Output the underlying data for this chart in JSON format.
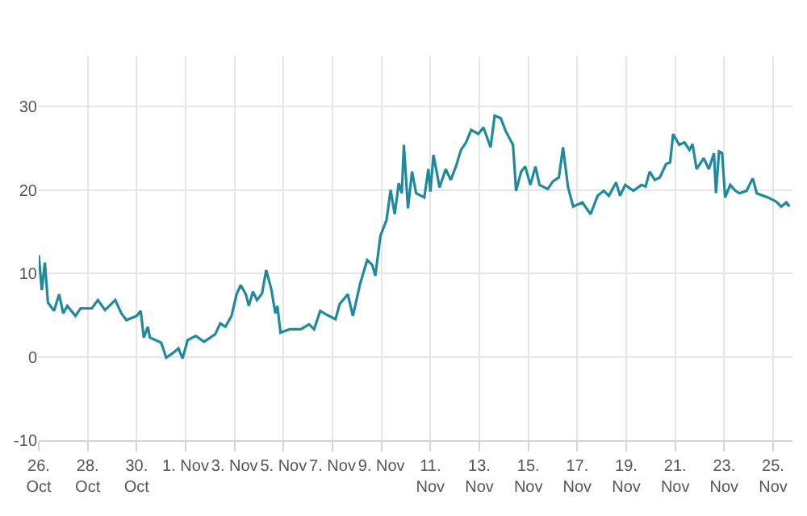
{
  "chart_data": {
    "type": "line",
    "x": [
      "--10-26T00:00",
      "--10-26T03:00",
      "--10-26T06:00",
      "--10-26T09:00",
      "--10-26T15:00",
      "--10-26T20:00",
      "--10-27T00:00",
      "--10-27T04:00",
      "--10-27T12:00",
      "--10-27T17:00",
      "--10-28T04:00",
      "--10-28T10:00",
      "--10-28T17:00",
      "--10-29T03:00",
      "--10-29T09:00",
      "--10-29T14:00",
      "--10-30T00:00",
      "--10-30T04:00",
      "--10-30T07:00",
      "--10-30T11:00",
      "--10-30T13:00",
      "--10-31T00:00",
      "--10-31T05:00",
      "--10-31T11:00",
      "--10-31T17:00",
      "--10-31T21:00",
      "--11-01T02:00",
      "--11-01T10:00",
      "--11-01T18:00",
      "--11-02T05:00",
      "--11-02T10:00",
      "--11-02T15:00",
      "--11-02T21:00",
      "--11-03T02:00",
      "--11-03T06:00",
      "--11-03T11:00",
      "--11-03T14:00",
      "--11-03T18:00",
      "--11-03T22:00",
      "--11-04T03:00",
      "--11-04T07:00",
      "--11-04T12:00",
      "--11-04T16:00",
      "--11-04T18:00",
      "--11-04T21:00",
      "--11-05T06:00",
      "--11-05T17:00",
      "--11-06T01:00",
      "--11-06T06:00",
      "--11-06T12:00",
      "--11-06T19:00",
      "--11-07T03:00",
      "--11-07T07:00",
      "--11-07T15:00",
      "--11-07T20:00",
      "--11-08T03:00",
      "--11-08T10:00",
      "--11-08T15:00",
      "--11-08T18:00",
      "--11-08T23:00",
      "--11-09T05:00",
      "--11-09T09:00",
      "--11-09T13:00",
      "--11-09T17:00",
      "--11-09T20:00",
      "--11-09T22:00",
      "--11-10T02:00",
      "--11-10T06:00",
      "--11-10T10:00",
      "--11-10T18:00",
      "--11-10T22:00",
      "--11-11T00:00",
      "--11-11T03:00",
      "--11-11T09:00",
      "--11-11T15:00",
      "--11-11T20:00",
      "--11-12T01:00",
      "--11-12T06:00",
      "--11-12T11:00",
      "--11-12T16:00",
      "--11-12T23:00",
      "--11-13T04:00",
      "--11-13T11:00",
      "--11-13T15:00",
      "--11-13T21:00",
      "--11-14T02:00",
      "--11-14T09:00",
      "--11-14T12:00",
      "--11-14T17:00",
      "--11-14T21:00",
      "--11-15T02:00",
      "--11-15T07:00",
      "--11-15T11:00",
      "--11-15T19:00",
      "--11-16T00:00",
      "--11-16T06:00",
      "--11-16T10:00",
      "--11-16T15:00",
      "--11-16T20:00",
      "--11-17T05:00",
      "--11-17T13:00",
      "--11-17T20:00",
      "--11-18T02:00",
      "--11-18T07:00",
      "--11-18T14:00",
      "--11-18T18:00",
      "--11-18T23:00",
      "--11-19T07:00",
      "--11-19T15:00",
      "--11-19T19:00",
      "--11-19T23:00",
      "--11-20T04:00",
      "--11-20T09:00",
      "--11-20T15:00",
      "--11-20T19:00",
      "--11-20T22:00",
      "--11-21T04:00",
      "--11-21T09:00",
      "--11-21T14:00",
      "--11-21T17:00",
      "--11-21T21:00",
      "--11-22T04:00",
      "--11-22T09:00",
      "--11-22T14:00",
      "--11-22T16:00",
      "--11-22T19:00",
      "--11-22T22:00",
      "--11-23T01:00",
      "--11-23T06:00",
      "--11-23T11:00",
      "--11-23T15:00",
      "--11-23T22:00",
      "--11-24T04:00",
      "--11-24T08:00",
      "--11-24T19:00",
      "--11-25T03:00",
      "--11-25T08:00",
      "--11-25T13:00",
      "--11-25T16:00"
    ],
    "series": [
      {
        "color": "#1f8a9e",
        "values": [
          12.2,
          8.0,
          11.3,
          6.5,
          5.5,
          7.5,
          5.2,
          6.1,
          4.9,
          5.8,
          5.8,
          6.8,
          5.6,
          6.8,
          5.2,
          4.4,
          4.9,
          5.5,
          2.3,
          3.6,
          2.3,
          1.7,
          -0.1,
          0.4,
          1.0,
          -0.2,
          2.0,
          2.5,
          1.8,
          2.7,
          4.0,
          3.6,
          4.9,
          7.5,
          8.6,
          7.5,
          6.1,
          7.8,
          6.8,
          7.6,
          10.4,
          8.1,
          5.2,
          6.1,
          2.9,
          3.3,
          3.3,
          3.9,
          3.3,
          5.5,
          5.0,
          4.5,
          6.3,
          7.5,
          4.9,
          8.7,
          11.6,
          11.0,
          9.7,
          14.5,
          16.4,
          20.0,
          17.1,
          20.8,
          19.6,
          25.4,
          17.8,
          22.2,
          19.6,
          19.1,
          22.5,
          19.8,
          24.2,
          20.3,
          22.5,
          21.2,
          22.8,
          24.8,
          25.7,
          27.2,
          26.7,
          27.5,
          25.1,
          28.9,
          28.6,
          27.0,
          25.4,
          19.9,
          22.2,
          22.8,
          20.6,
          22.8,
          20.6,
          20.1,
          21.0,
          21.5,
          25.1,
          20.3,
          18.0,
          18.5,
          17.1,
          19.3,
          19.9,
          19.3,
          20.9,
          19.3,
          20.6,
          19.9,
          20.6,
          20.4,
          22.2,
          21.2,
          21.5,
          23.1,
          23.3,
          26.7,
          25.4,
          25.7,
          24.8,
          25.5,
          22.5,
          23.8,
          22.5,
          24.4,
          19.6,
          24.6,
          24.4,
          19.1,
          20.6,
          19.9,
          19.6,
          19.9,
          21.4,
          19.6,
          19.1,
          18.6,
          18.0,
          18.5,
          18.0
        ]
      }
    ],
    "xlim": [
      "--10-26T00:00",
      "--11-25T19:00"
    ],
    "xticks": [
      {
        "value": "--10-26",
        "label": "26.\nOct"
      },
      {
        "value": "--10-28",
        "label": "28.\nOct"
      },
      {
        "value": "--10-30",
        "label": "30.\nOct"
      },
      {
        "value": "--11-01",
        "label": "1. Nov"
      },
      {
        "value": "--11-03",
        "label": "3. Nov"
      },
      {
        "value": "--11-05",
        "label": "5. Nov"
      },
      {
        "value": "--11-07",
        "label": "7. Nov"
      },
      {
        "value": "--11-09",
        "label": "9. Nov"
      },
      {
        "value": "--11-11",
        "label": "11.\nNov"
      },
      {
        "value": "--11-13",
        "label": "13.\nNov"
      },
      {
        "value": "--11-15",
        "label": "15.\nNov"
      },
      {
        "value": "--11-17",
        "label": "17.\nNov"
      },
      {
        "value": "--11-19",
        "label": "19.\nNov"
      },
      {
        "value": "--11-21",
        "label": "21.\nNov"
      },
      {
        "value": "--11-23",
        "label": "23.\nNov"
      },
      {
        "value": "--11-25",
        "label": "25.\nNov"
      }
    ],
    "ylim": [
      -10,
      36
    ],
    "yticks": [
      -10,
      0,
      10,
      20,
      30
    ],
    "grid": true,
    "marker": "none",
    "line_style": "solid"
  }
}
